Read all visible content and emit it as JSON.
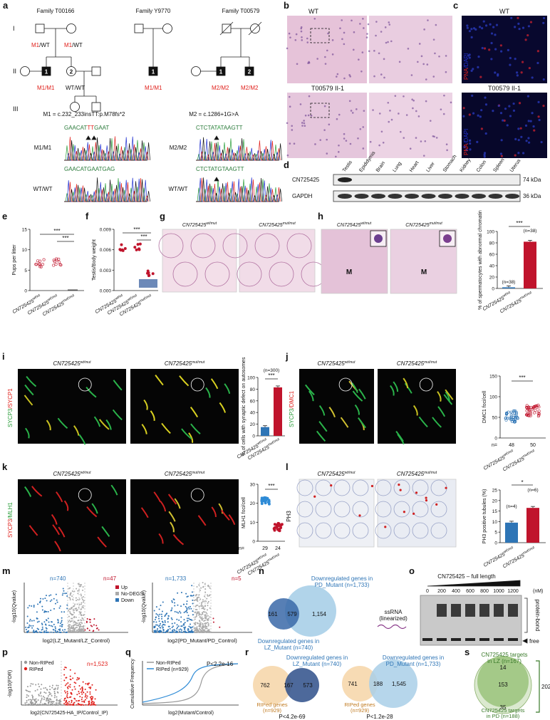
{
  "panel_labels": [
    "a",
    "b",
    "c",
    "d",
    "e",
    "f",
    "g",
    "h",
    "i",
    "j",
    "k",
    "l",
    "m",
    "n",
    "o",
    "p",
    "q",
    "r",
    "s"
  ],
  "genotype_labels": {
    "wtwt": {
      "gene": "CN725425",
      "type": "wt/wt"
    },
    "wtmut": {
      "gene": "CN725425",
      "type": "wt/mut"
    },
    "mutmut": {
      "gene": "CN725425",
      "type": "mut/mut"
    }
  },
  "a": {
    "generations": [
      "I",
      "II",
      "III"
    ],
    "families": [
      "Family T00166",
      "Family Y9770",
      "Family T00579"
    ],
    "genotypes": [
      [
        {
          "text": "M1",
          "color": "#e0201b"
        },
        {
          "text": "/WT"
        }
      ],
      [
        {
          "text": "M1",
          "color": "#e0201b"
        },
        {
          "text": "/WT"
        }
      ],
      [
        {
          "text": "M1/M1",
          "color": "#e0201b"
        }
      ],
      [
        {
          "text": "WT/WT"
        }
      ],
      [
        {
          "text": "M1/M1",
          "color": "#e0201b"
        }
      ],
      [
        {
          "text": "M2/M2",
          "color": "#e0201b"
        }
      ],
      [
        {
          "text": "M2/M2",
          "color": "#e0201b"
        }
      ]
    ],
    "individuals": [
      "1",
      "2",
      "1",
      "1",
      "2"
    ],
    "mutations": [
      "M1 = c.232_233insTT:p.M78fs*2",
      "M2 = c.1286+1G>A"
    ],
    "sequences": [
      [
        {
          "text": "GAACAT"
        },
        {
          "text": "TT",
          "color": "#e0201b"
        },
        {
          "text": "GAAT"
        }
      ],
      [
        {
          "text": "GAACATGAATGAG"
        }
      ],
      [
        {
          "text": "CTCTAT"
        },
        {
          "text": "A",
          "color": "#2a9d3a"
        },
        {
          "text": "TAAGTT"
        }
      ],
      [
        {
          "text": "CTCTATGTAAGTT"
        }
      ]
    ],
    "traces": [
      "M1/M1",
      "WT/WT",
      "M2/M2",
      "WT/WT"
    ]
  },
  "b": {
    "titles": [
      "WT",
      "T00579 II-1"
    ]
  },
  "c": {
    "titles": [
      "WT",
      "T00579 II-1"
    ],
    "stain": [
      {
        "text": "PNA",
        "color": "#e0201b"
      },
      {
        "text": "/DAPI",
        "color": "#2030d0"
      }
    ]
  },
  "d": {
    "tissues": [
      "Testis",
      "Epididymis",
      "Brain",
      "Lung",
      "Heart",
      "Liver",
      "Stomach",
      "Kidney",
      "Colon",
      "Spleen",
      "Uterus"
    ],
    "proteins": [
      "CN725425",
      "GAPDH"
    ],
    "sizes": [
      "74 kDa",
      "36 kDa"
    ]
  },
  "e": {
    "ylabel": "Pups per litter",
    "yticks": [
      0,
      5,
      10,
      15
    ],
    "significance": [
      "***",
      "***"
    ]
  },
  "f": {
    "ylabel": "Testis/Body weight",
    "yticks": [
      "0.000",
      "0.003",
      "0.006",
      "0.009"
    ],
    "significance": [
      "***",
      "***"
    ]
  },
  "h": {
    "mark": "M",
    "ylabel": "% of spermatocytes with abnormal chromatin",
    "yticks": [
      0,
      20,
      40,
      60,
      80,
      100
    ],
    "values": [
      2,
      82
    ],
    "colors": [
      "#2e75b6",
      "#c0142c"
    ],
    "n": [
      "(n=38)",
      "(n=38)"
    ],
    "significance": "***"
  },
  "i": {
    "stain": [
      {
        "text": "SYCP3",
        "color": "#2a9d3a"
      },
      {
        "text": "/SYCP1",
        "color": "#e0201b"
      }
    ],
    "ylabel": "% of cells with synaptic defect on autosomes",
    "yticks": [
      0,
      20,
      40,
      60,
      80,
      100
    ],
    "values": [
      15,
      83
    ],
    "colors": [
      "#2e75b6",
      "#c0142c"
    ],
    "n": "(n=300)",
    "significance": "***"
  },
  "j": {
    "stain": [
      {
        "text": "SYCP3",
        "color": "#2a9d3a"
      },
      {
        "text": "/DMC1",
        "color": "#e0201b"
      }
    ],
    "ylabel": "DMC1 foci/cell",
    "yticks": [
      0,
      50,
      100,
      150
    ],
    "n_label": "n=",
    "n": [
      "48",
      "50"
    ],
    "significance": "***"
  },
  "k": {
    "stain": [
      {
        "text": "SYCP3",
        "color": "#e0201b"
      },
      {
        "text": "/MLH1",
        "color": "#2a9d3a"
      }
    ],
    "ylabel": "MLH1 foci/cell",
    "yticks": [
      0,
      10,
      20,
      30
    ],
    "n_label": "n=",
    "n": [
      "29",
      "24"
    ],
    "significance": "***"
  },
  "l": {
    "stain": "PH3",
    "ylabel": "PH3 positive tubules (%)",
    "yticks": [
      0,
      5,
      10,
      15,
      20,
      25
    ],
    "values": [
      9.5,
      16.5
    ],
    "colors": [
      "#2e75b6",
      "#c0142c"
    ],
    "n": [
      "(n=4)",
      "(n=6)"
    ],
    "significance": "*"
  },
  "m": {
    "counts": [
      "n=740",
      "n=47",
      "n=1,733",
      "n=5"
    ],
    "legend": [
      {
        "name": "Up",
        "color": "#c0142c"
      },
      {
        "name": "No-DEGS",
        "color": "#aaaaaa"
      },
      {
        "name": "Down",
        "color": "#2e75b6"
      }
    ],
    "ylabel": "-log10(Qvalue)",
    "xlabels": [
      "log2(LZ_Mutant/LZ_Control)",
      "log2(PD_Mutant/PD_Control)"
    ]
  },
  "n": {
    "top": [
      "Downregulated genes in",
      "PD_Mutant (n=1,733)"
    ],
    "bottom": [
      "Downregulated genes in",
      "LZ_Mutant (n=740)"
    ],
    "counts": [
      "161",
      "579",
      "1,154"
    ]
  },
  "o": {
    "title": "CN725425 – full length",
    "concentrations": [
      "0",
      "200",
      "400",
      "600",
      "800",
      "1000",
      "1200"
    ],
    "unit": "(nM)",
    "probe": [
      "ssRNA",
      "(linearized)"
    ],
    "bound": "protein-bond",
    "free": "free"
  },
  "p": {
    "legend": [
      {
        "name": "Non-RIPed",
        "color": "#999999"
      },
      {
        "name": "RIPed",
        "color": "#e0201b"
      }
    ],
    "count": "n=1,523",
    "ylabel": "-log10(FDR)",
    "xlabel": "log2(CN725425-HA_IP/Control_IP)"
  },
  "q": {
    "legend": [
      {
        "name": "Non-RIPed",
        "color": "#999999"
      },
      {
        "name": "RIPed (n=929)",
        "color": "#2e8bd6"
      }
    ],
    "pvalue": "P<2.2e-16",
    "ylabel": "Cumulative Frequency",
    "xlabel": "log2(Mutant/Control)"
  },
  "r": {
    "venns": [
      {
        "title": [
          "Downregulated genes in",
          "LZ_Mutant (n=740)"
        ],
        "counts": [
          "762",
          "167",
          "573"
        ],
        "ripped": [
          "RIPed genes",
          "(n=929)"
        ],
        "pvalue": "P<4.2e-69"
      },
      {
        "title": [
          "Downregulated genes in",
          "PD_Mutant (n=1,733)"
        ],
        "counts": [
          "741",
          "188",
          "1,545"
        ],
        "ripped": [
          "RIPed genes",
          "(n=929)"
        ],
        "pvalue": "P<1.2e-28"
      }
    ]
  },
  "s": {
    "top": [
      "CN725425 targets",
      "in LZ (n=167)"
    ],
    "bottom": [
      "CN725425 targets",
      "in PD (n=188)"
    ],
    "counts": [
      "14",
      "153",
      "35"
    ],
    "total": "202"
  }
}
